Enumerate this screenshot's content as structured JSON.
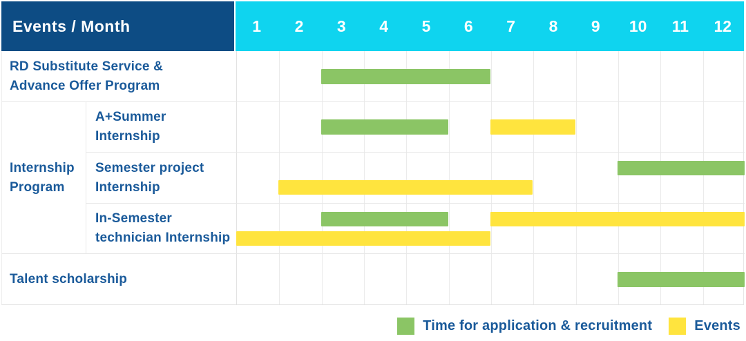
{
  "header": {
    "label": "Events / Month"
  },
  "colors": {
    "corner_bg": "#0D4C84",
    "months_bg": "#0FD4EF",
    "header_text": "#FFFFFF",
    "label_text": "#1A5A9A",
    "application": "#8BC565",
    "event": "#FFE43E",
    "grid": "#E7E7E7"
  },
  "legend": {
    "items": [
      {
        "key": "application",
        "label": "Time for application & recruitment",
        "color": "#8BC565"
      },
      {
        "key": "event",
        "label": "Events",
        "color": "#FFE43E"
      }
    ]
  },
  "chart_data": {
    "type": "bar",
    "variant": "gantt-schedule",
    "title": "Events / Month",
    "x": {
      "label": "Month",
      "ticks": [
        "1",
        "2",
        "3",
        "4",
        "5",
        "6",
        "7",
        "8",
        "9",
        "10",
        "11",
        "12"
      ],
      "range": [
        1,
        12
      ],
      "grid": true
    },
    "legend_position": "bottom-right",
    "series_legend": [
      {
        "name": "Time for application & recruitment",
        "color": "#8BC565"
      },
      {
        "name": "Events",
        "color": "#FFE43E"
      }
    ],
    "group_label": "Internship Program",
    "group_label_lines": [
      "Internship",
      "Program"
    ],
    "rows": [
      {
        "group": null,
        "label": "RD Substitute Service & Advance Offer Program",
        "label_lines": [
          "RD Substitute Service &",
          "Advance Offer Program"
        ],
        "bars": [
          {
            "series": "application",
            "start_month": 3,
            "end_month": 6,
            "line": "center"
          }
        ]
      },
      {
        "group": "Internship Program",
        "label": "A+Summer Internship",
        "label_lines": [
          "A+Summer",
          "Internship"
        ],
        "bars": [
          {
            "series": "application",
            "start_month": 3,
            "end_month": 5,
            "line": "center"
          },
          {
            "series": "event",
            "start_month": 7,
            "end_month": 8,
            "line": "center"
          }
        ]
      },
      {
        "group": "Internship Program",
        "label": "Semester project Internship",
        "label_lines": [
          "Semester project",
          "Internship"
        ],
        "bars": [
          {
            "series": "application",
            "start_month": 10,
            "end_month": 12,
            "line": "top"
          },
          {
            "series": "event",
            "start_month": 2,
            "end_month": 7,
            "line": "bottom"
          }
        ]
      },
      {
        "group": "Internship Program",
        "label": "In-Semester technician Internship",
        "label_lines": [
          "In-Semester",
          "technician Internship"
        ],
        "bars": [
          {
            "series": "application",
            "start_month": 3,
            "end_month": 5,
            "line": "top"
          },
          {
            "series": "event",
            "start_month": 7,
            "end_month": 12,
            "line": "top"
          },
          {
            "series": "event",
            "start_month": 1,
            "end_month": 6,
            "line": "bottom"
          }
        ]
      },
      {
        "group": null,
        "label": "Talent scholarship",
        "label_lines": [
          "Talent scholarship"
        ],
        "bars": [
          {
            "series": "application",
            "start_month": 10,
            "end_month": 12,
            "line": "center"
          }
        ]
      }
    ]
  }
}
